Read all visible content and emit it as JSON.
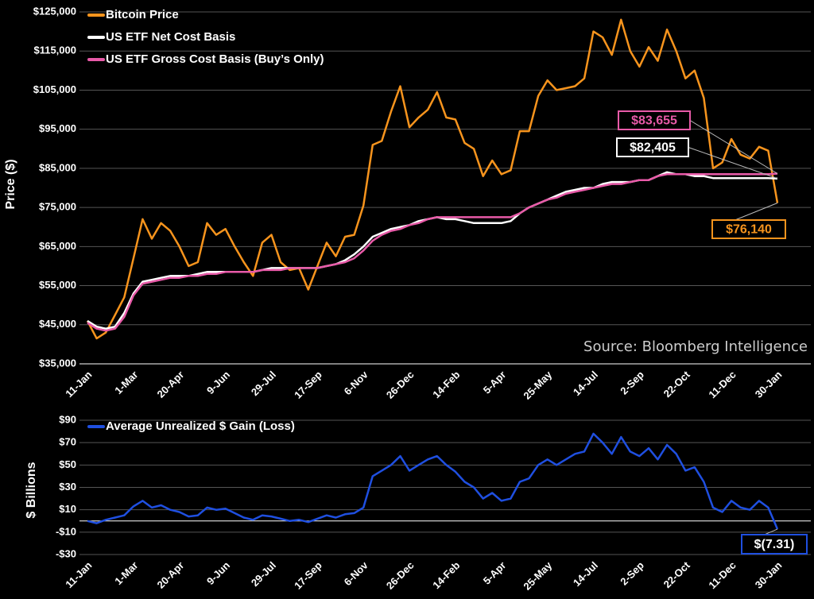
{
  "chart_data": [
    {
      "type": "line",
      "y_label": "Price ($)",
      "annotation": "Source: Bloomberg Intelligence",
      "grid": true,
      "legend": "upper left",
      "categories": [
        "11-Jan",
        null,
        null,
        null,
        null,
        "1-Mar",
        null,
        null,
        null,
        null,
        "20-Apr",
        null,
        null,
        null,
        null,
        "9-Jun",
        null,
        null,
        null,
        null,
        "29-Jul",
        null,
        null,
        null,
        null,
        "17-Sep",
        null,
        null,
        null,
        null,
        "6-Nov",
        null,
        null,
        null,
        null,
        "26-Dec",
        null,
        null,
        null,
        null,
        "14-Feb",
        null,
        null,
        null,
        null,
        "5-Apr",
        null,
        null,
        null,
        null,
        "25-May",
        null,
        null,
        null,
        null,
        "14-Jul",
        null,
        null,
        null,
        null,
        "2-Sep",
        null,
        null,
        null,
        null,
        "22-Oct",
        null,
        null,
        null,
        null,
        "11-Dec",
        null,
        null,
        null,
        null,
        "30-Jan"
      ],
      "ylim": [
        35000,
        125000
      ],
      "yticks": [
        {
          "value": 125000,
          "label": "$125,000"
        },
        {
          "value": 115000,
          "label": "$115,000"
        },
        {
          "value": 105000,
          "label": "$105,000"
        },
        {
          "value": 95000,
          "label": "$95,000"
        },
        {
          "value": 85000,
          "label": "$85,000"
        },
        {
          "value": 75000,
          "label": "$75,000"
        },
        {
          "value": 65000,
          "label": "$65,000"
        },
        {
          "value": 55000,
          "label": "$55,000"
        },
        {
          "value": 45000,
          "label": "$45,000"
        },
        {
          "value": 35000,
          "label": "$35,000"
        }
      ],
      "series": [
        {
          "name": "Bitcoin Price",
          "color": "#f7941d",
          "values": [
            46000,
            41500,
            43000,
            47500,
            52000,
            62000,
            72000,
            67000,
            71000,
            69000,
            65000,
            60000,
            61000,
            71000,
            68000,
            69500,
            65000,
            61000,
            57500,
            66000,
            68000,
            61000,
            59000,
            59500,
            54000,
            60000,
            66000,
            62500,
            67500,
            68000,
            75500,
            91000,
            92000,
            99500,
            106000,
            95500,
            98000,
            100000,
            104500,
            98000,
            97500,
            91500,
            90000,
            83000,
            87000,
            83500,
            84500,
            94500,
            94500,
            103500,
            107500,
            105000,
            105500,
            106000,
            108000,
            120000,
            118500,
            114000,
            123000,
            115000,
            111000,
            116000,
            112500,
            120500,
            115000,
            108000,
            110000,
            103000,
            85000,
            86500,
            92500,
            88500,
            87500,
            90500,
            89500,
            76140
          ],
          "value_labels": [
            null,
            null,
            null,
            null,
            null,
            null,
            null,
            null,
            null,
            null,
            null,
            null,
            null,
            null,
            null,
            null,
            null,
            null,
            null,
            null,
            null,
            null,
            null,
            null,
            null,
            null,
            null,
            null,
            null,
            null,
            null,
            null,
            null,
            null,
            null,
            null,
            null,
            null,
            null,
            null,
            null,
            null,
            null,
            null,
            null,
            null,
            null,
            null,
            null,
            null,
            null,
            null,
            null,
            null,
            null,
            null,
            null,
            null,
            null,
            null,
            null,
            null,
            null,
            null,
            null,
            null,
            null,
            null,
            null,
            null,
            null,
            null,
            null,
            null,
            null,
            "$76,140"
          ]
        },
        {
          "name": "US ETF Net Cost Basis",
          "color": "#ffffff",
          "values": [
            46000,
            44500,
            44000,
            44500,
            48000,
            53000,
            56000,
            56500,
            57000,
            57500,
            57500,
            57500,
            58000,
            58500,
            58500,
            58500,
            58500,
            58500,
            58500,
            59000,
            59500,
            59500,
            59500,
            59500,
            59500,
            59500,
            60000,
            60500,
            61500,
            63000,
            65000,
            67500,
            68500,
            69500,
            70000,
            70500,
            71500,
            72000,
            72500,
            72000,
            72000,
            71500,
            71000,
            71000,
            71000,
            71000,
            71500,
            73500,
            75000,
            76000,
            77000,
            78000,
            79000,
            79500,
            80000,
            80000,
            81000,
            81500,
            81500,
            81500,
            82000,
            82000,
            83000,
            84000,
            83500,
            83500,
            83000,
            83000,
            82500,
            82500,
            82500,
            82500,
            82500,
            82500,
            82500,
            82405
          ],
          "value_labels": [
            null,
            null,
            null,
            null,
            null,
            null,
            null,
            null,
            null,
            null,
            null,
            null,
            null,
            null,
            null,
            null,
            null,
            null,
            null,
            null,
            null,
            null,
            null,
            null,
            null,
            null,
            null,
            null,
            null,
            null,
            null,
            null,
            null,
            null,
            null,
            null,
            null,
            null,
            null,
            null,
            null,
            null,
            null,
            null,
            null,
            null,
            null,
            null,
            null,
            null,
            null,
            null,
            null,
            null,
            null,
            null,
            null,
            null,
            null,
            null,
            null,
            null,
            null,
            null,
            null,
            null,
            null,
            null,
            null,
            null,
            null,
            null,
            null,
            null,
            null,
            "$82,405"
          ]
        },
        {
          "name": "US ETF Gross Cost Basis (Buy’s Only)",
          "color": "#e85aa8",
          "values": [
            45500,
            44000,
            43500,
            44000,
            47000,
            52500,
            55500,
            56000,
            56500,
            57000,
            57000,
            57500,
            57500,
            58000,
            58000,
            58500,
            58500,
            58500,
            58500,
            59000,
            59000,
            59000,
            59500,
            59500,
            59500,
            59500,
            60000,
            60500,
            61000,
            62000,
            64000,
            66500,
            68000,
            69000,
            69500,
            70500,
            71000,
            72000,
            72500,
            72500,
            72500,
            72500,
            72500,
            72500,
            72500,
            72500,
            72500,
            73500,
            75000,
            76000,
            77000,
            77500,
            78500,
            79000,
            79500,
            80000,
            80500,
            81000,
            81000,
            81500,
            82000,
            82000,
            83000,
            83500,
            83500,
            83500,
            83500,
            83500,
            83500,
            83500,
            83500,
            83500,
            83500,
            83500,
            83500,
            83655
          ],
          "value_labels": [
            null,
            null,
            null,
            null,
            null,
            null,
            null,
            null,
            null,
            null,
            null,
            null,
            null,
            null,
            null,
            null,
            null,
            null,
            null,
            null,
            null,
            null,
            null,
            null,
            null,
            null,
            null,
            null,
            null,
            null,
            null,
            null,
            null,
            null,
            null,
            null,
            null,
            null,
            null,
            null,
            null,
            null,
            null,
            null,
            null,
            null,
            null,
            null,
            null,
            null,
            null,
            null,
            null,
            null,
            null,
            null,
            null,
            null,
            null,
            null,
            null,
            null,
            null,
            null,
            null,
            null,
            null,
            null,
            null,
            null,
            null,
            null,
            null,
            null,
            null,
            "$83,655"
          ]
        }
      ]
    },
    {
      "type": "line",
      "y_label": "$ Billions",
      "grid": true,
      "legend": "upper left",
      "zero_line": true,
      "categories": [
        "11-Jan",
        null,
        null,
        null,
        null,
        "1-Mar",
        null,
        null,
        null,
        null,
        "20-Apr",
        null,
        null,
        null,
        null,
        "9-Jun",
        null,
        null,
        null,
        null,
        "29-Jul",
        null,
        null,
        null,
        null,
        "17-Sep",
        null,
        null,
        null,
        null,
        "6-Nov",
        null,
        null,
        null,
        null,
        "26-Dec",
        null,
        null,
        null,
        null,
        "14-Feb",
        null,
        null,
        null,
        null,
        "5-Apr",
        null,
        null,
        null,
        null,
        "25-May",
        null,
        null,
        null,
        null,
        "14-Jul",
        null,
        null,
        null,
        null,
        "2-Sep",
        null,
        null,
        null,
        null,
        "22-Oct",
        null,
        null,
        null,
        null,
        "11-Dec",
        null,
        null,
        null,
        null,
        "30-Jan"
      ],
      "ylim": [
        -30,
        90
      ],
      "yticks": [
        {
          "value": 90,
          "label": "$90"
        },
        {
          "value": 70,
          "label": "$70"
        },
        {
          "value": 50,
          "label": "$50"
        },
        {
          "value": 30,
          "label": "$30"
        },
        {
          "value": 10,
          "label": "$10"
        },
        {
          "value": -10,
          "label": "-$10"
        },
        {
          "value": -30,
          "label": "-$30"
        }
      ],
      "series": [
        {
          "name": "Average Unrealized $ Gain (Loss)",
          "color": "#1f4fe0",
          "values": [
            0,
            -2,
            1,
            3,
            5,
            13,
            18,
            12,
            14,
            10,
            8,
            4,
            5,
            12,
            10,
            11,
            7,
            3,
            1,
            5,
            4,
            2,
            0,
            1,
            -1,
            2,
            5,
            3,
            6,
            7,
            12,
            40,
            45,
            50,
            58,
            45,
            50,
            55,
            58,
            50,
            44,
            35,
            30,
            20,
            25,
            18,
            20,
            35,
            38,
            50,
            55,
            50,
            55,
            60,
            62,
            78,
            70,
            60,
            75,
            62,
            58,
            65,
            55,
            68,
            60,
            45,
            48,
            35,
            12,
            8,
            18,
            12,
            10,
            18,
            12,
            -7.31
          ],
          "value_labels": [
            null,
            null,
            null,
            null,
            null,
            null,
            null,
            null,
            null,
            null,
            null,
            null,
            null,
            null,
            null,
            null,
            null,
            null,
            null,
            null,
            null,
            null,
            null,
            null,
            null,
            null,
            null,
            null,
            null,
            null,
            null,
            null,
            null,
            null,
            null,
            null,
            null,
            null,
            null,
            null,
            null,
            null,
            null,
            null,
            null,
            null,
            null,
            null,
            null,
            null,
            null,
            null,
            null,
            null,
            null,
            null,
            null,
            null,
            null,
            null,
            null,
            null,
            null,
            null,
            null,
            null,
            null,
            null,
            null,
            null,
            null,
            null,
            null,
            null,
            null,
            "$(7.31)"
          ]
        }
      ]
    }
  ]
}
